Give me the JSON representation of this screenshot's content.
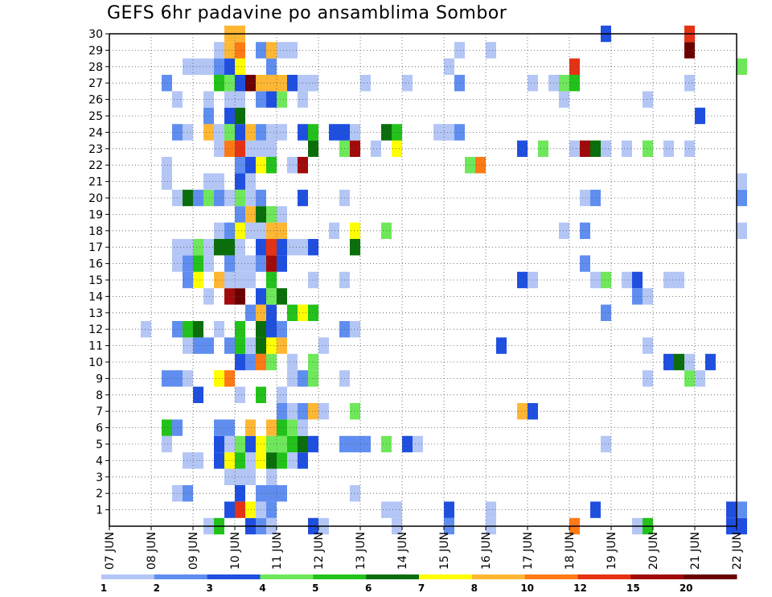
{
  "chart_data": {
    "type": "heatmap",
    "title": "GEFS 6hr padavine po ansamblima Sombor",
    "x_tick_labels": [
      "07 JUN",
      "08 JUN",
      "09 JUN",
      "10 JUN",
      "11 JUN",
      "12 JUN",
      "13 JUN",
      "14 JUN",
      "15 JUN",
      "16 JUN",
      "17 JUN",
      "18 JUN",
      "19 JUN",
      "20 JUN",
      "21 JUN",
      "22 JUN"
    ],
    "y_tick_labels": [
      "1",
      "2",
      "3",
      "4",
      "5",
      "6",
      "7",
      "8",
      "9",
      "10",
      "11",
      "12",
      "13",
      "14",
      "15",
      "16",
      "17",
      "18",
      "19",
      "20",
      "21",
      "22",
      "23",
      "24",
      "25",
      "26",
      "27",
      "28",
      "29",
      "30"
    ],
    "x_range": [
      "07 JUN",
      "22 JUN"
    ],
    "y_range": [
      0,
      30
    ],
    "grid": true,
    "colorbar": {
      "tick_labels": [
        "1",
        "2",
        "3",
        "4",
        "5",
        "6",
        "7",
        "8",
        "10",
        "12",
        "15",
        "20"
      ],
      "colors": [
        "#b3c6f5",
        "#5f8ef0",
        "#1f4fe0",
        "#6ee85a",
        "#22c21a",
        "#0a6e0a",
        "#ffff00",
        "#ffb733",
        "#ff7a14",
        "#e53214",
        "#a00a0a",
        "#6b0000"
      ]
    },
    "cells": [
      [
        0,
        10.25,
        3
      ],
      [
        0,
        10.5,
        2
      ],
      [
        0,
        10.75,
        1
      ],
      [
        0,
        9.25,
        1
      ],
      [
        0,
        12.0,
        1
      ],
      [
        0,
        13.75,
        1
      ],
      [
        0,
        15.0,
        2
      ],
      [
        0,
        16.0,
        1
      ],
      [
        0,
        18.0,
        9
      ],
      [
        0,
        19.5,
        1
      ],
      [
        0,
        19.75,
        5
      ],
      [
        0,
        21.75,
        3
      ],
      [
        0,
        22.0,
        3
      ],
      [
        0,
        11.75,
        3
      ],
      [
        0,
        9.5,
        5
      ],
      [
        1,
        9.75,
        3
      ],
      [
        1,
        10.0,
        10
      ],
      [
        1,
        10.25,
        7
      ],
      [
        1,
        10.5,
        1
      ],
      [
        1,
        10.75,
        2
      ],
      [
        1,
        13.5,
        1
      ],
      [
        1,
        13.75,
        1
      ],
      [
        1,
        15.0,
        3
      ],
      [
        1,
        16.0,
        1
      ],
      [
        1,
        18.5,
        3
      ],
      [
        1,
        21.75,
        3
      ],
      [
        1,
        22.0,
        2
      ],
      [
        2,
        8.5,
        1
      ],
      [
        2,
        8.75,
        2
      ],
      [
        2,
        10.0,
        3
      ],
      [
        2,
        10.5,
        2
      ],
      [
        2,
        10.75,
        2
      ],
      [
        2,
        11.0,
        2
      ],
      [
        2,
        12.75,
        1
      ],
      [
        3,
        9.75,
        1
      ],
      [
        3,
        10.0,
        1
      ],
      [
        3,
        10.25,
        1
      ],
      [
        3,
        10.75,
        1
      ],
      [
        4,
        8.75,
        1
      ],
      [
        4,
        9.0,
        1
      ],
      [
        4,
        9.5,
        3
      ],
      [
        4,
        9.75,
        7
      ],
      [
        4,
        10.0,
        5
      ],
      [
        4,
        10.25,
        1
      ],
      [
        4,
        10.5,
        7
      ],
      [
        4,
        10.75,
        6
      ],
      [
        4,
        11.0,
        5
      ],
      [
        4,
        11.25,
        1
      ],
      [
        4,
        11.5,
        3
      ],
      [
        5,
        8.25,
        1
      ],
      [
        5,
        9.5,
        3
      ],
      [
        5,
        9.75,
        1
      ],
      [
        5,
        10.0,
        4
      ],
      [
        5,
        10.25,
        3
      ],
      [
        5,
        10.5,
        7
      ],
      [
        5,
        10.75,
        4
      ],
      [
        5,
        11.0,
        4
      ],
      [
        5,
        11.25,
        5
      ],
      [
        5,
        11.5,
        6
      ],
      [
        5,
        11.75,
        3
      ],
      [
        5,
        12.5,
        2
      ],
      [
        5,
        12.75,
        2
      ],
      [
        5,
        13.0,
        2
      ],
      [
        5,
        13.5,
        4
      ],
      [
        5,
        14.0,
        3
      ],
      [
        5,
        14.25,
        1
      ],
      [
        5,
        18.75,
        1
      ],
      [
        6,
        8.25,
        5
      ],
      [
        6,
        8.5,
        2
      ],
      [
        6,
        9.5,
        2
      ],
      [
        6,
        9.75,
        2
      ],
      [
        6,
        10.25,
        8
      ],
      [
        6,
        10.75,
        8
      ],
      [
        6,
        11.0,
        5
      ],
      [
        6,
        11.25,
        4
      ],
      [
        6,
        11.5,
        1
      ],
      [
        7,
        11.0,
        2
      ],
      [
        7,
        11.25,
        1
      ],
      [
        7,
        11.5,
        2
      ],
      [
        7,
        11.75,
        8
      ],
      [
        7,
        12.0,
        1
      ],
      [
        7,
        12.75,
        4
      ],
      [
        7,
        16.75,
        8
      ],
      [
        7,
        17.0,
        3
      ],
      [
        8,
        9.0,
        3
      ],
      [
        8,
        10.0,
        1
      ],
      [
        8,
        10.5,
        5
      ],
      [
        8,
        11.0,
        1
      ],
      [
        9,
        8.25,
        2
      ],
      [
        9,
        8.5,
        2
      ],
      [
        9,
        8.75,
        1
      ],
      [
        9,
        9.5,
        7
      ],
      [
        9,
        9.75,
        9
      ],
      [
        9,
        11.25,
        1
      ],
      [
        9,
        11.5,
        2
      ],
      [
        9,
        11.75,
        4
      ],
      [
        9,
        12.5,
        1
      ],
      [
        9,
        19.75,
        1
      ],
      [
        9,
        20.75,
        4
      ],
      [
        9,
        21.0,
        1
      ],
      [
        10,
        10.0,
        3
      ],
      [
        10,
        10.25,
        2
      ],
      [
        10,
        10.5,
        9
      ],
      [
        10,
        10.75,
        4
      ],
      [
        10,
        11.25,
        1
      ],
      [
        10,
        11.75,
        4
      ],
      [
        10,
        20.25,
        3
      ],
      [
        10,
        20.5,
        6
      ],
      [
        10,
        20.75,
        1
      ],
      [
        10,
        21.25,
        3
      ],
      [
        11,
        8.75,
        1
      ],
      [
        11,
        9.0,
        2
      ],
      [
        11,
        9.25,
        2
      ],
      [
        11,
        9.75,
        2
      ],
      [
        11,
        10.0,
        5
      ],
      [
        11,
        10.25,
        1
      ],
      [
        11,
        10.5,
        6
      ],
      [
        11,
        10.75,
        7
      ],
      [
        11,
        11.0,
        8
      ],
      [
        11,
        12.0,
        1
      ],
      [
        11,
        16.25,
        3
      ],
      [
        11,
        19.75,
        1
      ],
      [
        12,
        7.75,
        1
      ],
      [
        12,
        8.5,
        2
      ],
      [
        12,
        8.75,
        5
      ],
      [
        12,
        9.0,
        6
      ],
      [
        12,
        9.5,
        1
      ],
      [
        12,
        10.0,
        5
      ],
      [
        12,
        10.5,
        6
      ],
      [
        12,
        10.75,
        3
      ],
      [
        12,
        11.0,
        2
      ],
      [
        12,
        12.5,
        2
      ],
      [
        12,
        12.75,
        1
      ],
      [
        13,
        10.25,
        2
      ],
      [
        13,
        10.5,
        8
      ],
      [
        13,
        10.75,
        3
      ],
      [
        13,
        11.25,
        5
      ],
      [
        13,
        11.5,
        7
      ],
      [
        13,
        11.75,
        5
      ],
      [
        13,
        18.75,
        2
      ],
      [
        14,
        9.25,
        1
      ],
      [
        14,
        9.75,
        11
      ],
      [
        14,
        10.0,
        12
      ],
      [
        14,
        10.5,
        3
      ],
      [
        14,
        10.75,
        4
      ],
      [
        14,
        11.0,
        6
      ],
      [
        14,
        19.5,
        2
      ],
      [
        14,
        19.75,
        1
      ],
      [
        15,
        8.75,
        2
      ],
      [
        15,
        9.0,
        7
      ],
      [
        15,
        9.5,
        8
      ],
      [
        15,
        9.75,
        1
      ],
      [
        15,
        10.0,
        1
      ],
      [
        15,
        10.25,
        1
      ],
      [
        15,
        10.75,
        5
      ],
      [
        15,
        11.75,
        1
      ],
      [
        15,
        12.5,
        1
      ],
      [
        15,
        16.75,
        3
      ],
      [
        15,
        17.0,
        1
      ],
      [
        15,
        18.5,
        1
      ],
      [
        15,
        18.75,
        4
      ],
      [
        15,
        19.25,
        1
      ],
      [
        15,
        19.5,
        3
      ],
      [
        15,
        20.25,
        1
      ],
      [
        15,
        20.5,
        1
      ],
      [
        16,
        8.5,
        1
      ],
      [
        16,
        8.75,
        2
      ],
      [
        16,
        9.0,
        5
      ],
      [
        16,
        9.25,
        1
      ],
      [
        16,
        9.75,
        2
      ],
      [
        16,
        10.0,
        1
      ],
      [
        16,
        10.25,
        1
      ],
      [
        16,
        10.5,
        2
      ],
      [
        16,
        10.75,
        11
      ],
      [
        16,
        11.0,
        3
      ],
      [
        16,
        18.25,
        2
      ],
      [
        17,
        8.5,
        1
      ],
      [
        17,
        8.75,
        1
      ],
      [
        17,
        9.0,
        4
      ],
      [
        17,
        9.25,
        1
      ],
      [
        17,
        9.5,
        6
      ],
      [
        17,
        9.75,
        6
      ],
      [
        17,
        10.0,
        1
      ],
      [
        17,
        10.5,
        3
      ],
      [
        17,
        10.75,
        10
      ],
      [
        17,
        11.0,
        3
      ],
      [
        17,
        11.25,
        1
      ],
      [
        17,
        11.5,
        1
      ],
      [
        17,
        11.75,
        3
      ],
      [
        17,
        12.75,
        6
      ],
      [
        18,
        9.5,
        1
      ],
      [
        18,
        9.75,
        2
      ],
      [
        18,
        10.0,
        7
      ],
      [
        18,
        10.25,
        1
      ],
      [
        18,
        10.5,
        1
      ],
      [
        18,
        10.75,
        8
      ],
      [
        18,
        11.0,
        8
      ],
      [
        18,
        12.25,
        1
      ],
      [
        18,
        12.75,
        7
      ],
      [
        18,
        13.5,
        4
      ],
      [
        18,
        17.75,
        1
      ],
      [
        18,
        18.25,
        2
      ],
      [
        18,
        22.0,
        1
      ],
      [
        19,
        10.0,
        2
      ],
      [
        19,
        10.25,
        8
      ],
      [
        19,
        10.5,
        6
      ],
      [
        19,
        10.75,
        4
      ],
      [
        19,
        11.0,
        1
      ],
      [
        20,
        8.5,
        1
      ],
      [
        20,
        8.75,
        6
      ],
      [
        20,
        9.0,
        2
      ],
      [
        20,
        9.25,
        4
      ],
      [
        20,
        9.5,
        2
      ],
      [
        20,
        9.75,
        1
      ],
      [
        20,
        10.0,
        4
      ],
      [
        20,
        10.25,
        1
      ],
      [
        20,
        10.5,
        2
      ],
      [
        20,
        11.5,
        3
      ],
      [
        20,
        12.5,
        1
      ],
      [
        20,
        18.25,
        1
      ],
      [
        20,
        18.5,
        2
      ],
      [
        20,
        22.0,
        2
      ],
      [
        21,
        8.25,
        1
      ],
      [
        21,
        9.25,
        1
      ],
      [
        21,
        9.5,
        1
      ],
      [
        21,
        10.0,
        3
      ],
      [
        21,
        10.25,
        1
      ],
      [
        21,
        22.0,
        1
      ],
      [
        22,
        8.25,
        1
      ],
      [
        22,
        10.0,
        2
      ],
      [
        22,
        10.25,
        3
      ],
      [
        22,
        10.5,
        7
      ],
      [
        22,
        10.75,
        5
      ],
      [
        22,
        11.25,
        1
      ],
      [
        22,
        11.5,
        11
      ],
      [
        22,
        15.5,
        4
      ],
      [
        22,
        15.75,
        9
      ],
      [
        23,
        9.5,
        1
      ],
      [
        23,
        9.75,
        9
      ],
      [
        23,
        10.0,
        10
      ],
      [
        23,
        10.25,
        1
      ],
      [
        23,
        10.5,
        1
      ],
      [
        23,
        10.75,
        1
      ],
      [
        23,
        11.75,
        6
      ],
      [
        23,
        12.5,
        4
      ],
      [
        23,
        12.75,
        11
      ],
      [
        23,
        13.25,
        1
      ],
      [
        23,
        13.75,
        7
      ],
      [
        23,
        16.75,
        3
      ],
      [
        23,
        17.25,
        4
      ],
      [
        23,
        18.0,
        1
      ],
      [
        23,
        18.25,
        11
      ],
      [
        23,
        18.5,
        6
      ],
      [
        23,
        18.75,
        1
      ],
      [
        23,
        19.25,
        1
      ],
      [
        23,
        19.75,
        4
      ],
      [
        23,
        20.25,
        1
      ],
      [
        23,
        20.75,
        1
      ],
      [
        24,
        8.5,
        2
      ],
      [
        24,
        8.75,
        1
      ],
      [
        24,
        9.25,
        8
      ],
      [
        24,
        9.5,
        1
      ],
      [
        24,
        9.75,
        4
      ],
      [
        24,
        10.0,
        3
      ],
      [
        24,
        10.25,
        8
      ],
      [
        24,
        10.5,
        2
      ],
      [
        24,
        10.75,
        1
      ],
      [
        24,
        11.0,
        1
      ],
      [
        24,
        11.5,
        3
      ],
      [
        24,
        11.75,
        5
      ],
      [
        24,
        12.25,
        3
      ],
      [
        24,
        12.5,
        3
      ],
      [
        24,
        12.75,
        1
      ],
      [
        24,
        13.5,
        6
      ],
      [
        24,
        13.75,
        5
      ],
      [
        24,
        14.75,
        1
      ],
      [
        24,
        15.0,
        1
      ],
      [
        24,
        15.25,
        2
      ],
      [
        25,
        9.25,
        2
      ],
      [
        25,
        9.75,
        3
      ],
      [
        25,
        10.0,
        6
      ],
      [
        25,
        21.0,
        3
      ],
      [
        26,
        8.5,
        1
      ],
      [
        26,
        9.25,
        1
      ],
      [
        26,
        9.75,
        1
      ],
      [
        26,
        10.0,
        1
      ],
      [
        26,
        10.5,
        2
      ],
      [
        26,
        10.75,
        3
      ],
      [
        26,
        11.0,
        4
      ],
      [
        26,
        11.5,
        1
      ],
      [
        26,
        17.75,
        1
      ],
      [
        26,
        19.75,
        1
      ],
      [
        27,
        8.25,
        2
      ],
      [
        27,
        9.5,
        5
      ],
      [
        27,
        9.75,
        4
      ],
      [
        27,
        10.0,
        3
      ],
      [
        27,
        10.25,
        12
      ],
      [
        27,
        10.5,
        8
      ],
      [
        27,
        10.75,
        8
      ],
      [
        27,
        11.0,
        8
      ],
      [
        27,
        11.25,
        3
      ],
      [
        27,
        11.5,
        1
      ],
      [
        27,
        11.75,
        1
      ],
      [
        27,
        13.0,
        1
      ],
      [
        27,
        14.0,
        1
      ],
      [
        27,
        15.25,
        2
      ],
      [
        27,
        17.0,
        1
      ],
      [
        27,
        17.5,
        1
      ],
      [
        27,
        17.75,
        4
      ],
      [
        27,
        18.0,
        5
      ],
      [
        27,
        20.75,
        1
      ],
      [
        28,
        8.75,
        1
      ],
      [
        28,
        9.0,
        1
      ],
      [
        28,
        9.25,
        1
      ],
      [
        28,
        9.5,
        2
      ],
      [
        28,
        9.75,
        3
      ],
      [
        28,
        10.0,
        7
      ],
      [
        28,
        10.75,
        2
      ],
      [
        28,
        15.0,
        1
      ],
      [
        28,
        18.0,
        10
      ],
      [
        28,
        22.0,
        4
      ],
      [
        29,
        9.5,
        1
      ],
      [
        29,
        9.75,
        8
      ],
      [
        29,
        10.0,
        9
      ],
      [
        29,
        10.5,
        2
      ],
      [
        29,
        10.75,
        8
      ],
      [
        29,
        11.0,
        1
      ],
      [
        29,
        11.25,
        1
      ],
      [
        29,
        15.25,
        1
      ],
      [
        29,
        16.0,
        1
      ],
      [
        29,
        20.75,
        12
      ],
      [
        30,
        9.75,
        8
      ],
      [
        30,
        10.0,
        8
      ],
      [
        30,
        18.75,
        3
      ],
      [
        30,
        20.75,
        10
      ]
    ]
  }
}
